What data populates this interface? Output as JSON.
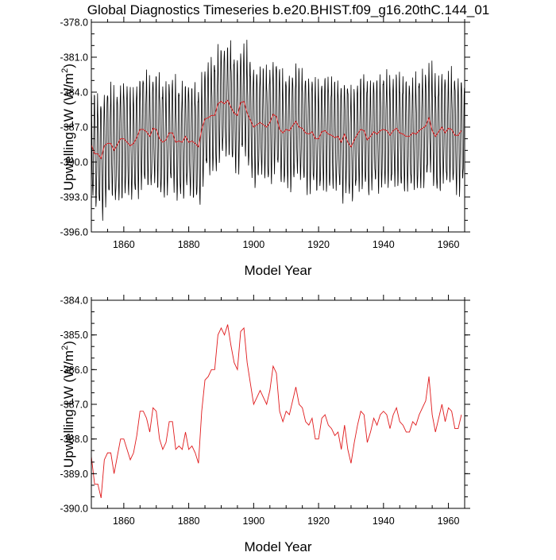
{
  "title": "Global Diagnostics Timeseries b.e20.BHIST.f09_g16.20thC.144_01",
  "colors": {
    "monthly": "#000000",
    "annual": "#e0191b"
  },
  "chart_data": [
    {
      "type": "line",
      "xlabel": "Model Year",
      "ylabel": "Upwelling LW (W/m²)",
      "ylabel_base": "Upwelling LW (W/m",
      "ylabel_sup": "2",
      "ylabel_end": ")",
      "xlim": [
        1850,
        1965
      ],
      "ylim": [
        -396.0,
        -378.0
      ],
      "x_ticks": [
        1860,
        1880,
        1900,
        1920,
        1940,
        1960
      ],
      "y_ticks": [
        "-378.0",
        "-381.0",
        "-384.0",
        "-387.0",
        "-390.0",
        "-393.0",
        "-396.0"
      ],
      "grid": false,
      "series": [
        {
          "style": "monthly",
          "color": "#000000",
          "seasonal_amplitude": 4.5,
          "description_ref": "annual"
        },
        {
          "style": "annual",
          "color": "#e0191b",
          "ref": "annual"
        }
      ]
    },
    {
      "type": "line",
      "xlabel": "Model Year",
      "ylabel": "Upwelling LW (W/m²)",
      "ylabel_base": "Upwelling LW (W/m",
      "ylabel_sup": "2",
      "ylabel_end": ")",
      "xlim": [
        1850,
        1965
      ],
      "ylim": [
        -390.0,
        -384.0
      ],
      "x_ticks": [
        1860,
        1880,
        1900,
        1920,
        1940,
        1960
      ],
      "y_ticks": [
        "-384.0",
        "-385.0",
        "-386.0",
        "-387.0",
        "-388.0",
        "-389.0",
        "-390.0"
      ],
      "grid": false,
      "series": [
        {
          "style": "annual",
          "color": "#e0191b",
          "ref": "annual"
        }
      ]
    }
  ],
  "annual_series": {
    "x": [
      1850,
      1851,
      1852,
      1853,
      1854,
      1855,
      1856,
      1857,
      1858,
      1859,
      1860,
      1861,
      1862,
      1863,
      1864,
      1865,
      1866,
      1867,
      1868,
      1869,
      1870,
      1871,
      1872,
      1873,
      1874,
      1875,
      1876,
      1877,
      1878,
      1879,
      1880,
      1881,
      1882,
      1883,
      1884,
      1885,
      1886,
      1887,
      1888,
      1889,
      1890,
      1891,
      1892,
      1893,
      1894,
      1895,
      1896,
      1897,
      1898,
      1899,
      1900,
      1901,
      1902,
      1903,
      1904,
      1905,
      1906,
      1907,
      1908,
      1909,
      1910,
      1911,
      1912,
      1913,
      1914,
      1915,
      1916,
      1917,
      1918,
      1919,
      1920,
      1921,
      1922,
      1923,
      1924,
      1925,
      1926,
      1927,
      1928,
      1929,
      1930,
      1931,
      1932,
      1933,
      1934,
      1935,
      1936,
      1937,
      1938,
      1939,
      1940,
      1941,
      1942,
      1943,
      1944,
      1945,
      1946,
      1947,
      1948,
      1949,
      1950,
      1951,
      1952,
      1953,
      1954,
      1955,
      1956,
      1957,
      1958,
      1959,
      1960,
      1961,
      1962,
      1963,
      1964
    ],
    "y": [
      -388.5,
      -389.3,
      -389.3,
      -389.7,
      -388.6,
      -388.4,
      -388.4,
      -389.0,
      -388.5,
      -388.0,
      -388.0,
      -388.3,
      -388.6,
      -388.4,
      -387.9,
      -387.2,
      -387.2,
      -387.4,
      -387.8,
      -387.1,
      -387.2,
      -388.0,
      -388.3,
      -388.1,
      -387.5,
      -387.5,
      -388.3,
      -388.2,
      -388.3,
      -387.8,
      -388.3,
      -388.2,
      -388.4,
      -388.7,
      -387.2,
      -386.3,
      -386.2,
      -386.0,
      -386.0,
      -385.0,
      -384.8,
      -385.0,
      -384.7,
      -385.3,
      -385.8,
      -386.0,
      -384.9,
      -384.8,
      -385.8,
      -386.4,
      -387.0,
      -386.8,
      -386.6,
      -386.8,
      -387.0,
      -386.6,
      -385.9,
      -386.1,
      -387.2,
      -387.5,
      -387.2,
      -387.3,
      -386.9,
      -386.5,
      -387.0,
      -387.1,
      -387.5,
      -387.6,
      -387.4,
      -388.0,
      -388.0,
      -387.4,
      -387.3,
      -387.6,
      -387.7,
      -387.9,
      -387.8,
      -388.3,
      -387.6,
      -388.3,
      -388.7,
      -388.1,
      -387.6,
      -387.2,
      -387.3,
      -388.1,
      -387.8,
      -387.4,
      -387.6,
      -387.3,
      -387.2,
      -387.3,
      -387.7,
      -387.3,
      -387.1,
      -387.5,
      -387.6,
      -387.8,
      -387.8,
      -387.5,
      -387.6,
      -387.3,
      -387.1,
      -386.9,
      -386.2,
      -387.3,
      -387.8,
      -387.4,
      -387.0,
      -387.5,
      -387.1,
      -387.2,
      -387.7,
      -387.7,
      -387.3
    ]
  }
}
